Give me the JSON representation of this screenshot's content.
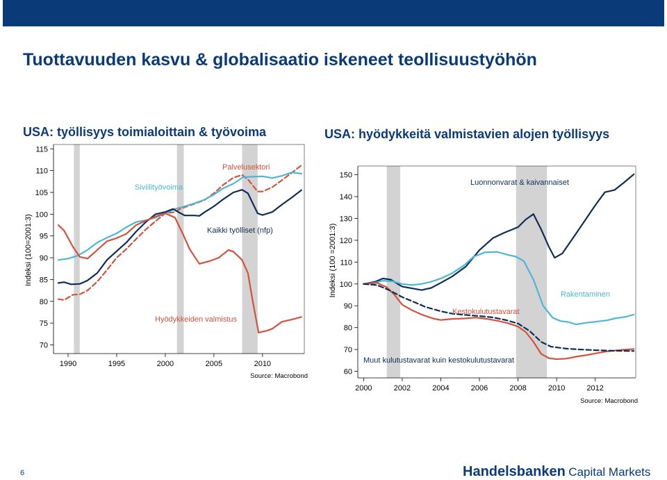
{
  "slide": {
    "title": "Tuottavuuden kasvu & globalisaatio iskeneet teollisuustyöhön",
    "page_number": "6",
    "brand_bold": "Handelsbanken",
    "brand_light": "Capital Markets",
    "colors": {
      "header": "#0a3a78",
      "navy": "#0d2d57",
      "red": "#d4513b",
      "cyan": "#4cb6d6",
      "recession": "#d3d3d3"
    }
  },
  "chart_data": [
    {
      "type": "line",
      "title": "USA: työllisyys toimialoittain & työvoima",
      "ylabel": "Indeksi (100=2001:3)",
      "xlim": [
        1988.5,
        2014.3
      ],
      "ylim": [
        68,
        116
      ],
      "xticks": [
        1990,
        1995,
        2000,
        2005,
        2010
      ],
      "yticks": [
        70,
        75,
        80,
        85,
        90,
        95,
        100,
        105,
        110,
        115
      ],
      "grid": false,
      "recessions": [
        [
          1990.6,
          1991.2
        ],
        [
          2001.2,
          2001.9
        ],
        [
          2007.9,
          2009.5
        ]
      ],
      "source": "Source: Macrobond",
      "series": [
        {
          "name": "Palvelusektori",
          "style": "dashed",
          "color": "#d4513b",
          "x": [
            1989,
            1989.6,
            1990.5,
            1991.2,
            1992,
            1993,
            1994,
            1995,
            1996,
            1997,
            1998,
            1999,
            2000,
            2001,
            2001.5,
            2002,
            2003,
            2004,
            2005,
            2006,
            2007,
            2007.9,
            2008.5,
            2009.5,
            2010,
            2011,
            2012,
            2013,
            2014
          ],
          "values": [
            80.5,
            80.3,
            81.5,
            81.6,
            82.5,
            84.5,
            87.2,
            90,
            92,
            94.3,
            96.5,
            98.4,
            100.2,
            100.5,
            101.2,
            101.6,
            102.4,
            103.2,
            104.8,
            106.8,
            108.4,
            109,
            108,
            105.2,
            105.2,
            106.2,
            107.8,
            109.5,
            111.2
          ]
        },
        {
          "name": "Siviilityövoima",
          "style": "solid",
          "color": "#4cb6d6",
          "x": [
            1989,
            1990,
            1991,
            1992,
            1993,
            1994,
            1995,
            1996,
            1997,
            1998,
            1999,
            2000,
            2001,
            2002,
            2003,
            2004,
            2005,
            2006,
            2007,
            2008,
            2009,
            2010,
            2011,
            2012,
            2013,
            2014
          ],
          "values": [
            89.5,
            89.8,
            90.5,
            91.8,
            93.5,
            94.6,
            95.6,
            97,
            98.2,
            98.6,
            99.2,
            100.2,
            101.2,
            101.8,
            102.5,
            103.3,
            104.5,
            106,
            107,
            108.5,
            108.6,
            108.7,
            108.3,
            108.8,
            109.6,
            109.3
          ]
        },
        {
          "name": "Kaikki työlliset (nfp)",
          "style": "solid",
          "color": "#0d2d57",
          "x": [
            1989,
            1989.6,
            1990.3,
            1991.2,
            1992,
            1993,
            1994,
            1995,
            1996,
            1997,
            1998,
            1999,
            2000,
            2000.8,
            2001.5,
            2002,
            2003,
            2003.5,
            2004,
            2005,
            2006,
            2007,
            2007.9,
            2008.5,
            2009.5,
            2010,
            2011,
            2012,
            2013,
            2014
          ],
          "values": [
            84.2,
            84.4,
            83.9,
            84,
            84.8,
            86.5,
            89.5,
            91.5,
            93.5,
            96,
            98.2,
            100,
            100.5,
            101.2,
            100.3,
            99.7,
            99.7,
            99.6,
            100.4,
            101.8,
            103.5,
            105,
            105.6,
            104.8,
            100.2,
            99.8,
            100.5,
            102.2,
            103.8,
            105.5
          ]
        },
        {
          "name": "Hyödykkeiden valmistus",
          "style": "solid",
          "color": "#d4513b",
          "x": [
            1989,
            1989.6,
            1990.5,
            1991.2,
            1992,
            1993,
            1994,
            1995,
            1996,
            1997,
            1998,
            1999,
            2000,
            2001,
            2001.8,
            2002.5,
            2003.5,
            2004.5,
            2005.5,
            2006.5,
            2007,
            2007.9,
            2008.5,
            2009,
            2009.6,
            2010.5,
            2011,
            2012,
            2013,
            2014
          ],
          "values": [
            97.5,
            96.2,
            92.5,
            90.2,
            89.8,
            91.8,
            93.8,
            94.5,
            95.5,
            97.5,
            98.5,
            99.5,
            100.2,
            99.2,
            95.5,
            92,
            88.6,
            89.2,
            90,
            91.8,
            91.4,
            89.5,
            86.5,
            80,
            72.8,
            73.3,
            73.7,
            75.3,
            75.8,
            76.4
          ]
        }
      ],
      "labels": {
        "palvelu": "Palvelusektori",
        "siviili": "Siviilityövoima",
        "nfp": "Kaikki työlliset (nfp)",
        "hyodykkeet": "Hyödykkeiden valmistus"
      }
    },
    {
      "type": "line",
      "title": "USA: hyödykkeitä valmistavien alojen työllisyys",
      "ylabel": "Indeksi (100 =2001:3)",
      "xlim": [
        1999.7,
        2014.1
      ],
      "ylim": [
        57,
        154
      ],
      "xticks": [
        2000,
        2002,
        2004,
        2006,
        2008,
        2010,
        2012
      ],
      "yticks": [
        60,
        70,
        80,
        90,
        100,
        110,
        120,
        130,
        140,
        150
      ],
      "grid": false,
      "recessions": [
        [
          2001.2,
          2001.9
        ],
        [
          2007.9,
          2009.5
        ]
      ],
      "source": "Source: Macrobond",
      "series": [
        {
          "name": "Luonnonvarat & kaivannaiset",
          "style": "solid",
          "color": "#0d2d57",
          "x": [
            2000,
            2000.6,
            2001,
            2001.4,
            2002,
            2002.5,
            2003,
            2003.5,
            2004,
            2004.6,
            2005.3,
            2006,
            2006.7,
            2007.3,
            2008,
            2008.4,
            2008.8,
            2009.2,
            2009.6,
            2009.9,
            2010.3,
            2011,
            2012,
            2012.5,
            2013,
            2013.5,
            2014
          ],
          "values": [
            100,
            101,
            102.5,
            102,
            98.8,
            98,
            97.2,
            98.2,
            100.5,
            103.5,
            108,
            115.5,
            121,
            123.5,
            126,
            129.5,
            132,
            125,
            117,
            112,
            114,
            123,
            136,
            142,
            143,
            146.5,
            150.2
          ]
        },
        {
          "name": "Rakentaminen",
          "style": "solid",
          "color": "#4cb6d6",
          "x": [
            2000,
            2000.6,
            2001,
            2001.5,
            2002,
            2002.5,
            2003,
            2003.5,
            2004,
            2004.6,
            2005.2,
            2005.7,
            2006.3,
            2006.9,
            2007.4,
            2007.9,
            2008.3,
            2008.8,
            2009.3,
            2009.8,
            2010.2,
            2010.6,
            2011,
            2011.5,
            2012,
            2012.6,
            2013,
            2013.6,
            2014
          ],
          "values": [
            100,
            100.6,
            101.5,
            101.2,
            100,
            99.5,
            100,
            101,
            102.5,
            105,
            108.5,
            112.5,
            114.5,
            114.7,
            113.5,
            112.5,
            110.5,
            102,
            90,
            84.5,
            83,
            82.6,
            81.5,
            82.2,
            82.7,
            83.3,
            84.2,
            85,
            86
          ]
        },
        {
          "name": "Kestokulutustavarat",
          "style": "solid",
          "color": "#d4513b",
          "x": [
            2000,
            2000.7,
            2001.2,
            2001.6,
            2002,
            2002.5,
            2003,
            2003.6,
            2004,
            2004.6,
            2005.2,
            2005.8,
            2006.4,
            2007,
            2007.5,
            2008,
            2008.4,
            2008.8,
            2009.2,
            2009.6,
            2010,
            2010.5,
            2011,
            2011.6,
            2012,
            2012.5,
            2013,
            2013.6,
            2014
          ],
          "values": [
            100,
            100.5,
            98.5,
            95,
            90.5,
            88,
            86,
            84.2,
            83.5,
            84,
            84.2,
            84.6,
            84,
            83,
            82,
            80.5,
            78,
            73.5,
            68,
            66,
            65.6,
            65.8,
            66.7,
            67.5,
            68.2,
            69,
            69.5,
            70,
            70.2
          ]
        },
        {
          "name": "Muut kulutustavarat kuin kestokulutustavarat",
          "style": "dashed",
          "color": "#0d2d57",
          "x": [
            2000,
            2000.7,
            2001.3,
            2002,
            2002.6,
            2003.2,
            2004,
            2004.6,
            2005.3,
            2006,
            2006.7,
            2007.4,
            2008,
            2008.6,
            2009.2,
            2009.7,
            2010.5,
            2011,
            2012,
            2013,
            2014
          ],
          "values": [
            100,
            99.5,
            97.3,
            94,
            91.8,
            89.5,
            87.5,
            86.4,
            85.8,
            85.3,
            84.7,
            83.4,
            81.9,
            78.5,
            73.5,
            71.3,
            70.4,
            70.1,
            69.7,
            69.4,
            69.3
          ]
        }
      ],
      "labels": {
        "luonnon": "Luonnonvarat & kaivannaiset",
        "rakent": "Rakentaminen",
        "kesto": "Kestokulutustavarat",
        "muut": "Muut kulutustavarat kuin kestokulutustavarat"
      }
    }
  ]
}
